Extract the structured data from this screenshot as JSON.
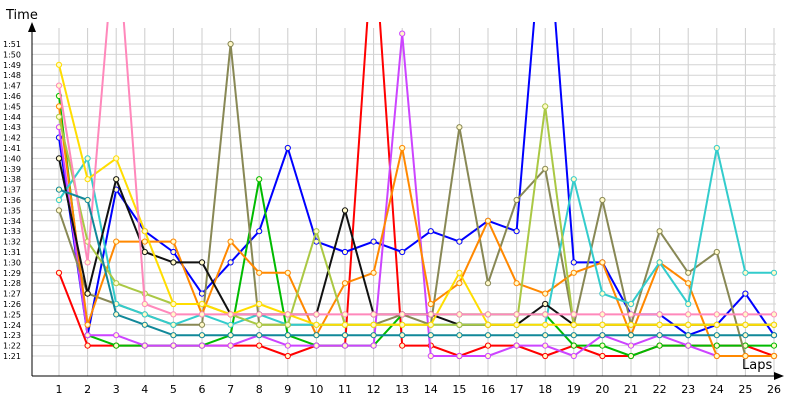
{
  "chart_data": {
    "type": "line",
    "title": "",
    "ylabel": "Time",
    "xlabel": "Laps",
    "x": [
      1,
      2,
      3,
      4,
      5,
      6,
      7,
      8,
      9,
      10,
      11,
      12,
      13,
      14,
      15,
      16,
      17,
      18,
      19,
      20,
      21,
      22,
      23,
      24,
      25,
      26
    ],
    "y_ticks": [
      "1:21",
      "1:22",
      "1:23",
      "1:24",
      "1:25",
      "1:26",
      "1:27",
      "1:28",
      "1:29",
      "1:30",
      "1:31",
      "1:32",
      "1:33",
      "1:34",
      "1:35",
      "1:36",
      "1:37",
      "1:38",
      "1:39",
      "1:40",
      "1:41",
      "1:42",
      "1:43",
      "1:44",
      "1:45",
      "1:46",
      "1:47",
      "1:48",
      "1:49",
      "1:50",
      "1:51"
    ],
    "ylim_seconds": [
      80,
      115
    ],
    "grid": true,
    "legend": "none",
    "series": [
      {
        "color": "#ff0000",
        "values": [
          89,
          82,
          82,
          82,
          82,
          82,
          82,
          82,
          81,
          82,
          82,
          122,
          82,
          82,
          81,
          82,
          82,
          81,
          82,
          81,
          81,
          82,
          82,
          82,
          82,
          81
        ]
      },
      {
        "color": "#0000ff",
        "values": [
          102,
          83,
          97,
          93,
          91,
          87,
          90,
          93,
          101,
          92,
          91,
          92,
          91,
          93,
          92,
          94,
          93,
          126,
          90,
          90,
          85,
          85,
          83,
          84,
          87,
          83
        ]
      },
      {
        "color": "#00bb00",
        "values": [
          106,
          83,
          82,
          82,
          82,
          82,
          83,
          98,
          83,
          82,
          82,
          82,
          85,
          85,
          85,
          85,
          85,
          85,
          82,
          82,
          81,
          82,
          82,
          82,
          82,
          82
        ]
      },
      {
        "color": "#cc44ff",
        "values": [
          103,
          83,
          83,
          82,
          82,
          82,
          82,
          83,
          82,
          82,
          82,
          82,
          112,
          81,
          81,
          81,
          82,
          82,
          81,
          83,
          82,
          83,
          82,
          81,
          81,
          81
        ]
      },
      {
        "color": "#888855",
        "values": [
          95,
          87,
          86,
          85,
          84,
          84,
          111,
          84,
          84,
          84,
          84,
          84,
          85,
          84,
          103,
          88,
          96,
          99,
          84,
          96,
          84,
          93,
          89,
          91,
          81,
          81
        ]
      },
      {
        "color": "#ff8800",
        "values": [
          105,
          84,
          92,
          92,
          92,
          85,
          92,
          89,
          89,
          83,
          88,
          89,
          101,
          86,
          88,
          94,
          88,
          87,
          89,
          90,
          83,
          90,
          88,
          81,
          81,
          81
        ]
      },
      {
        "color": "#33cccc",
        "values": [
          96,
          100,
          86,
          85,
          84,
          85,
          84,
          85,
          84,
          84,
          84,
          84,
          84,
          84,
          84,
          84,
          84,
          84,
          98,
          87,
          86,
          90,
          86,
          101,
          89,
          89
        ]
      },
      {
        "color": "#111111",
        "values": [
          100,
          87,
          98,
          91,
          90,
          90,
          85,
          85,
          85,
          85,
          95,
          85,
          85,
          85,
          84,
          84,
          84,
          86,
          84,
          84,
          84,
          84,
          84,
          84,
          84,
          84
        ]
      },
      {
        "color": "#aac844",
        "values": [
          104,
          92,
          88,
          87,
          86,
          86,
          85,
          84,
          84,
          93,
          84,
          84,
          84,
          84,
          84,
          84,
          84,
          105,
          84,
          84,
          84,
          84,
          84,
          84,
          84,
          84
        ]
      },
      {
        "color": "#ffdd00",
        "values": [
          109,
          98,
          100,
          93,
          86,
          86,
          85,
          86,
          85,
          84,
          84,
          84,
          84,
          84,
          89,
          84,
          84,
          84,
          84,
          84,
          84,
          84,
          84,
          84,
          84,
          84
        ]
      },
      {
        "color": "#ff88bb",
        "values": [
          107,
          90,
          123,
          86,
          85,
          85,
          85,
          85,
          85,
          85,
          85,
          85,
          85,
          85,
          85,
          85,
          85,
          85,
          85,
          85,
          85,
          85,
          85,
          85,
          85,
          85
        ]
      },
      {
        "color": "#118899",
        "values": [
          97,
          96,
          85,
          84,
          83,
          83,
          83,
          83,
          83,
          83,
          83,
          83,
          83,
          83,
          83,
          83,
          83,
          83,
          83,
          83,
          83,
          83,
          83,
          83,
          83,
          83
        ]
      }
    ]
  }
}
